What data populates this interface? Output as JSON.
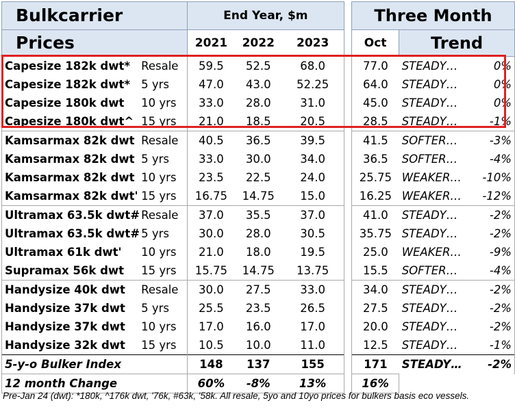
{
  "header": {
    "title_line1": "Bulkcarrier",
    "title_line2": "Prices",
    "end_year_label": "End Year, $m",
    "years": [
      "2021",
      "2022",
      "2023"
    ],
    "three_month_label": "Three Month",
    "oct_label": "Oct",
    "trend_label": "Trend"
  },
  "rows": [
    {
      "vessel": "Capesize 182k dwt*",
      "age": "Resale",
      "y2021": "59.5",
      "y2022": "52.5",
      "y2023": "68.0",
      "oct": "77.0",
      "trend": "STEADY…",
      "pct": "0%"
    },
    {
      "vessel": "Capesize 182k dwt*",
      "age": "5 yrs",
      "y2021": "47.0",
      "y2022": "43.0",
      "y2023": "52.25",
      "oct": "64.0",
      "trend": "STEADY…",
      "pct": "0%"
    },
    {
      "vessel": "Capesize 180k dwt",
      "age": "10 yrs",
      "y2021": "33.0",
      "y2022": "28.0",
      "y2023": "31.0",
      "oct": "45.0",
      "trend": "STEADY…",
      "pct": "0%"
    },
    {
      "vessel": "Capesize 180k dwt^",
      "age": "15 yrs",
      "y2021": "21.0",
      "y2022": "18.5",
      "y2023": "20.5",
      "oct": "28.5",
      "trend": "STEADY…",
      "pct": "-1%"
    },
    {
      "vessel": "Kamsarmax 82k dwt",
      "age": "Resale",
      "y2021": "40.5",
      "y2022": "36.5",
      "y2023": "39.5",
      "oct": "41.5",
      "trend": "SOFTER…",
      "pct": "-3%"
    },
    {
      "vessel": "Kamsarmax 82k dwt",
      "age": "5 yrs",
      "y2021": "33.0",
      "y2022": "30.0",
      "y2023": "34.0",
      "oct": "36.5",
      "trend": "SOFTER…",
      "pct": "-4%"
    },
    {
      "vessel": "Kamsarmax 82k dwt",
      "age": "10 yrs",
      "y2021": "23.5",
      "y2022": "22.5",
      "y2023": "24.0",
      "oct": "25.75",
      "trend": "WEAKER…",
      "pct": "-10%"
    },
    {
      "vessel": "Kamsarmax 82k dwt'",
      "age": "15 yrs",
      "y2021": "16.75",
      "y2022": "14.75",
      "y2023": "15.0",
      "oct": "16.25",
      "trend": "WEAKER…",
      "pct": "-12%"
    },
    {
      "vessel": "Ultramax 63.5k dwt#",
      "age": "Resale",
      "y2021": "37.0",
      "y2022": "35.5",
      "y2023": "37.0",
      "oct": "41.0",
      "trend": "STEADY…",
      "pct": "-2%"
    },
    {
      "vessel": "Ultramax 63.5k dwt#",
      "age": "5 yrs",
      "y2021": "30.0",
      "y2022": "28.0",
      "y2023": "30.5",
      "oct": "35.75",
      "trend": "STEADY…",
      "pct": "-2%"
    },
    {
      "vessel": "Ultramax 61k dwt'",
      "age": "10 yrs",
      "y2021": "21.0",
      "y2022": "18.0",
      "y2023": "19.5",
      "oct": "25.0",
      "trend": "WEAKER…",
      "pct": "-9%"
    },
    {
      "vessel": "Supramax 56k dwt",
      "age": "15 yrs",
      "y2021": "15.75",
      "y2022": "14.75",
      "y2023": "13.75",
      "oct": "15.5",
      "trend": "SOFTER…",
      "pct": "-4%"
    },
    {
      "vessel": "Handysize 40k dwt",
      "age": "Resale",
      "y2021": "30.0",
      "y2022": "27.5",
      "y2023": "33.0",
      "oct": "34.0",
      "trend": "STEADY…",
      "pct": "-2%"
    },
    {
      "vessel": "Handysize 37k dwt",
      "age": "5 yrs",
      "y2021": "25.5",
      "y2022": "23.5",
      "y2023": "26.5",
      "oct": "27.5",
      "trend": "STEADY…",
      "pct": "-2%"
    },
    {
      "vessel": "Handysize 37k dwt",
      "age": "10 yrs",
      "y2021": "17.0",
      "y2022": "16.0",
      "y2023": "17.0",
      "oct": "20.0",
      "trend": "STEADY…",
      "pct": "-2%"
    },
    {
      "vessel": "Handysize 32k dwt",
      "age": "15 yrs",
      "y2021": "10.5",
      "y2022": "10.0",
      "y2023": "11.0",
      "oct": "12.5",
      "trend": "STEADY…",
      "pct": "-1%"
    }
  ],
  "index_row": {
    "label": "5-y-o Bulker Index",
    "y2021": "148",
    "y2022": "137",
    "y2023": "155",
    "oct": "171",
    "trend": "STEADY…",
    "pct": "-2%"
  },
  "change_row": {
    "label": "12 month Change",
    "y2021": "60%",
    "y2022": "-8%",
    "y2023": "13%",
    "oct": "16%"
  },
  "footnote": "Pre-Jan 24 (dwt): *180k, ^176k dwt, '76k, #63k, '58k. All resale, 5yo and 10yo prices for bulkers basis eco vessels.",
  "colors": {
    "header_fill": "#dce6f2",
    "highlight": "#e02020"
  }
}
